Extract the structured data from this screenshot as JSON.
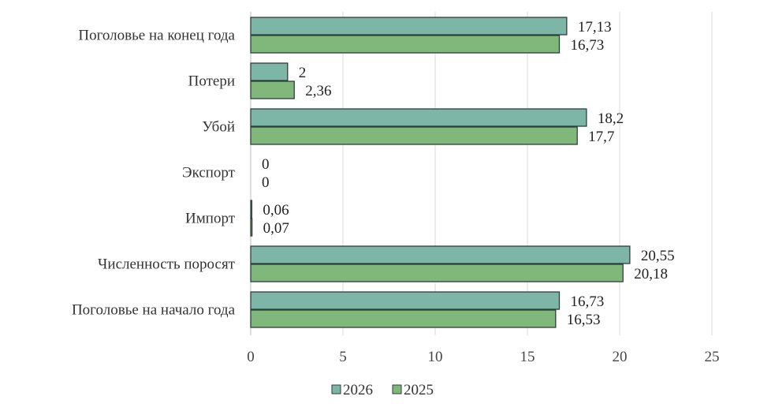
{
  "chart_data": {
    "type": "bar",
    "orientation": "horizontal",
    "categories": [
      "Поголовье на конец года",
      "Потери",
      "Убой",
      "Экспорт",
      "Импорт",
      "Численность поросят",
      "Поголовье на начало года"
    ],
    "series": [
      {
        "name": "2026",
        "color": "#7db5a6",
        "values": [
          17.13,
          2,
          18.2,
          0,
          0.06,
          20.55,
          16.73
        ],
        "labels": [
          "17,13",
          "2",
          "18,2",
          "0",
          "0,06",
          "20,55",
          "16,73"
        ]
      },
      {
        "name": "2025",
        "color": "#7fb87a",
        "values": [
          16.73,
          2.36,
          17.7,
          0,
          0.07,
          20.18,
          16.53
        ],
        "labels": [
          "16,73",
          "2,36",
          "17,7",
          "0",
          "0,07",
          "20,18",
          "16,53"
        ]
      }
    ],
    "xlim": [
      0,
      25
    ],
    "xticks": [
      0,
      5,
      10,
      15,
      20,
      25
    ],
    "grid": true,
    "legend_position": "bottom"
  }
}
